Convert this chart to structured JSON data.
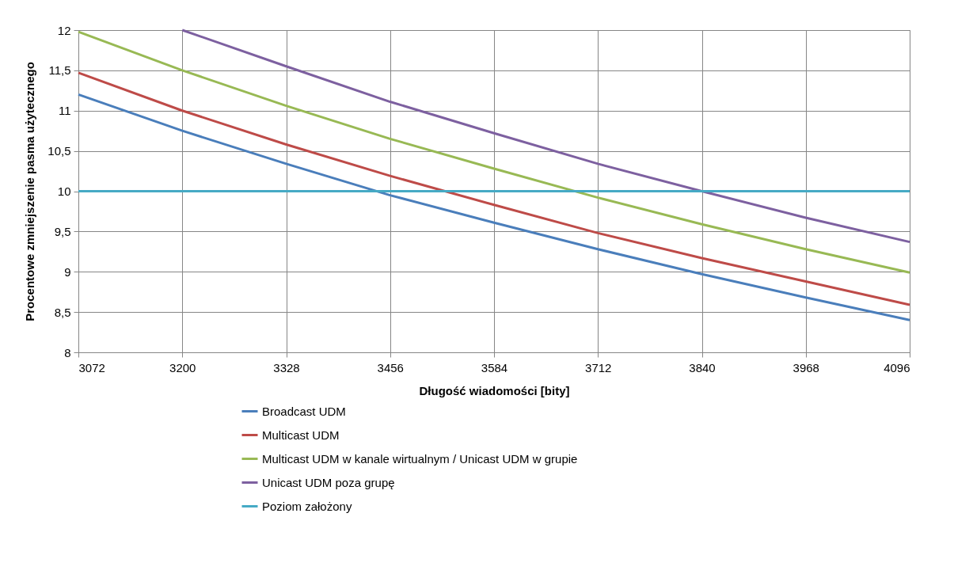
{
  "chart_data": {
    "type": "line",
    "xlabel": "Długość wiadomości [bity]",
    "ylabel": "Procentowe zmniejszenie pasma użytecznego",
    "x": [
      3072,
      3200,
      3328,
      3456,
      3584,
      3712,
      3840,
      3968,
      4096
    ],
    "series": [
      {
        "name": "Broadcast UDM",
        "color": "#4a7ebb",
        "values": [
          11.2,
          10.75,
          10.34,
          9.95,
          9.61,
          9.28,
          8.97,
          8.68,
          8.4
        ]
      },
      {
        "name": "Multicast UDM",
        "color": "#be4b48",
        "values": [
          11.47,
          11.0,
          10.58,
          10.19,
          9.83,
          9.48,
          9.17,
          8.88,
          8.59
        ]
      },
      {
        "name": "Multicast UDM w kanale wirtualnym / Unicast UDM w grupie",
        "color": "#98b954",
        "values": [
          11.98,
          11.5,
          11.06,
          10.65,
          10.28,
          9.92,
          9.59,
          9.28,
          8.99
        ]
      },
      {
        "name": "Unicast UDM poza grupę",
        "color": "#7d60a0",
        "values": [
          null,
          12.0,
          11.55,
          11.11,
          10.72,
          10.34,
          10.0,
          9.67,
          9.37
        ]
      },
      {
        "name": "Poziom założony",
        "color": "#46aac5",
        "values": [
          10,
          10,
          10,
          10,
          10,
          10,
          10,
          10,
          10
        ]
      }
    ],
    "xlim": [
      3072,
      4096
    ],
    "xticks": [
      3072,
      3200,
      3328,
      3456,
      3584,
      3712,
      3840,
      3968,
      4096
    ],
    "ylim": [
      8,
      12
    ],
    "yticks": [
      8,
      {
        "value": 8.5,
        "label": "8,5"
      },
      9,
      {
        "value": 9.5,
        "label": "9,5"
      },
      10,
      {
        "value": 10.5,
        "label": "10,5"
      },
      11,
      {
        "value": 11.5,
        "label": "11,5"
      },
      12
    ],
    "grid": true,
    "legend": "bottom",
    "marker": "none",
    "line_style": "solid"
  }
}
